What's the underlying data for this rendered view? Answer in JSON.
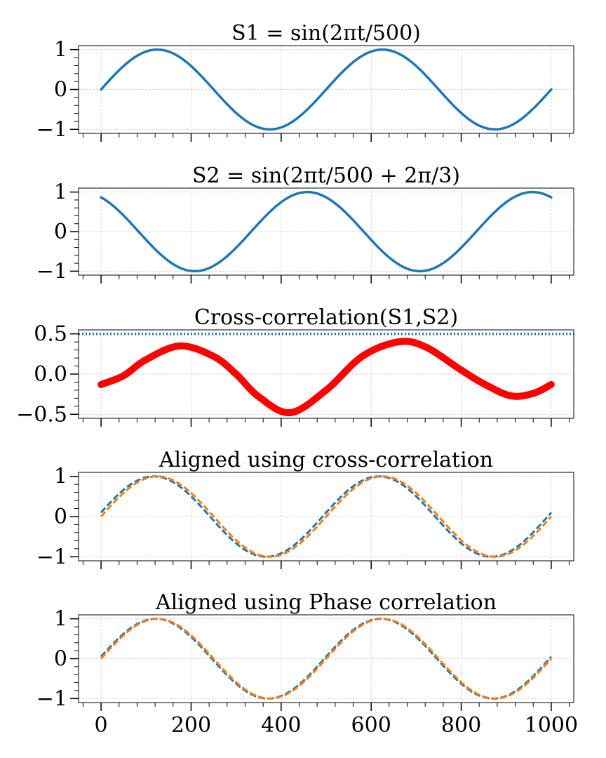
{
  "chart_data": [
    {
      "type": "line",
      "title": "S1 = sin(2πt/500)",
      "xlim": [
        -50,
        1050
      ],
      "ylim": [
        -1.1,
        1.1
      ],
      "xticks": [
        0,
        200,
        400,
        600,
        800,
        1000
      ],
      "yticks": [
        -1,
        0,
        1
      ],
      "yticklabels": [
        "−1",
        "0",
        "1"
      ],
      "xticklabels_shown": false,
      "grid": true,
      "series": [
        {
          "color": "#1f77b4",
          "style": "solid",
          "x": [
            0,
            125,
            250,
            375,
            500,
            625,
            750,
            875,
            1000
          ],
          "y": [
            0,
            1,
            0,
            -1,
            0,
            1,
            0,
            -1,
            0
          ],
          "formula": {
            "amp": 1,
            "period": 500,
            "phase": 0
          }
        }
      ]
    },
    {
      "type": "line",
      "title": "S2 = sin(2πt/500 + 2π/3)",
      "xlim": [
        -50,
        1050
      ],
      "ylim": [
        -1.1,
        1.1
      ],
      "xticks": [
        0,
        200,
        400,
        600,
        800,
        1000
      ],
      "yticks": [
        -1,
        0,
        1
      ],
      "yticklabels": [
        "−1",
        "0",
        "1"
      ],
      "xticklabels_shown": false,
      "grid": true,
      "series": [
        {
          "color": "#1f77b4",
          "style": "solid",
          "x": [
            0,
            83,
            208,
            333,
            458,
            583,
            708,
            833,
            958,
            1000
          ],
          "y": [
            0.866,
            0,
            -1,
            0,
            1,
            0,
            -1,
            0,
            1,
            0.866
          ],
          "formula": {
            "amp": 1,
            "period": 500,
            "phase": 2.0944
          }
        }
      ]
    },
    {
      "type": "line",
      "title": "Cross-correlation(S1,S2)",
      "xlim": [
        -50,
        1050
      ],
      "ylim": [
        -0.55,
        0.55
      ],
      "xticks": [
        0,
        200,
        400,
        600,
        800,
        1000
      ],
      "yticks": [
        -0.5,
        0.0,
        0.5
      ],
      "yticklabels": [
        "−0.5",
        "0.0",
        "0.5"
      ],
      "xticklabels_shown": false,
      "grid": true,
      "hline": {
        "y": 0.5,
        "color": "#1f77b4",
        "style": "dotted"
      },
      "series": [
        {
          "color": "#ff0000",
          "style": "thick",
          "x": [
            0,
            50,
            100,
            175,
            250,
            300,
            350,
            420,
            500,
            580,
            660,
            720,
            800,
            850,
            910,
            960,
            1000
          ],
          "y": [
            -0.13,
            -0.02,
            0.18,
            0.35,
            0.22,
            0.0,
            -0.28,
            -0.48,
            -0.2,
            0.22,
            0.4,
            0.34,
            0.05,
            -0.12,
            -0.27,
            -0.24,
            -0.13
          ]
        }
      ]
    },
    {
      "type": "line",
      "title": "Aligned using cross-correlation",
      "xlim": [
        -50,
        1050
      ],
      "ylim": [
        -1.1,
        1.1
      ],
      "xticks": [
        0,
        200,
        400,
        600,
        800,
        1000
      ],
      "yticks": [
        -1,
        0,
        1
      ],
      "yticklabels": [
        "−1",
        "0",
        "1"
      ],
      "xticklabels_shown": false,
      "grid": true,
      "series": [
        {
          "color": "#1f77b4",
          "style": "dashed",
          "x": [
            0,
            120,
            245,
            370,
            495,
            620,
            745,
            870,
            1000
          ],
          "y": [
            0.1,
            1,
            0,
            -1,
            0,
            1,
            0,
            -1,
            0.1
          ],
          "formula": {
            "amp": 1,
            "period": 500,
            "phase": 0.1
          }
        },
        {
          "color": "#ff7f0e",
          "style": "dashed",
          "x": [
            0,
            125,
            250,
            375,
            500,
            625,
            750,
            875,
            1000
          ],
          "y": [
            0,
            1,
            0,
            -1,
            0,
            1,
            0,
            -1,
            0
          ],
          "formula": {
            "amp": 1,
            "period": 500,
            "phase": 0
          }
        }
      ]
    },
    {
      "type": "line",
      "title": "Aligned using Phase correlation",
      "xlim": [
        -50,
        1050
      ],
      "ylim": [
        -1.1,
        1.1
      ],
      "xticks": [
        0,
        200,
        400,
        600,
        800,
        1000
      ],
      "xticklabels": [
        "0",
        "200",
        "400",
        "600",
        "800",
        "1000"
      ],
      "yticks": [
        -1,
        0,
        1
      ],
      "yticklabels": [
        "−1",
        "0",
        "1"
      ],
      "xticklabels_shown": true,
      "grid": true,
      "series": [
        {
          "color": "#1f77b4",
          "style": "dashed",
          "x": [
            0,
            123,
            248,
            373,
            498,
            623,
            748,
            873,
            1000
          ],
          "y": [
            0.05,
            1,
            0,
            -1,
            0,
            1,
            0,
            -1,
            0.05
          ],
          "formula": {
            "amp": 1,
            "period": 500,
            "phase": 0.05
          }
        },
        {
          "color": "#ff7f0e",
          "style": "dashed",
          "x": [
            0,
            125,
            250,
            375,
            500,
            625,
            750,
            875,
            1000
          ],
          "y": [
            0,
            1,
            0,
            -1,
            0,
            1,
            0,
            -1,
            0
          ],
          "formula": {
            "amp": 1,
            "period": 500,
            "phase": 0
          }
        }
      ]
    }
  ]
}
